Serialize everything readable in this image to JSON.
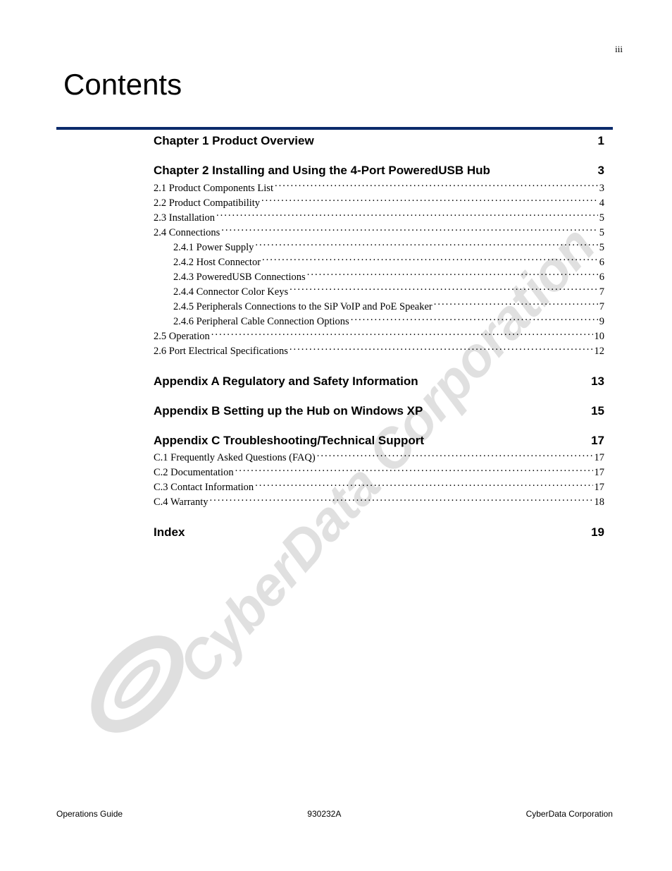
{
  "page": {
    "roman": "iii",
    "footer_left": "Operations Guide",
    "footer_center": "930232A",
    "footer_right": "CyberData Corporation",
    "watermark_text": "CyberData Corporation"
  },
  "title": "Contents",
  "colors": {
    "rule": "#0b2a6b",
    "text": "#000000",
    "watermark": "rgba(0,0,0,0.12)",
    "background": "#ffffff"
  },
  "typography": {
    "title_fontsize": 42,
    "heading_fontsize": 17,
    "line_fontsize": 14.5,
    "footer_fontsize": 12,
    "title_font": "Century Gothic",
    "body_font": "Georgia"
  },
  "toc": [
    {
      "heading": "Chapter 1 Product Overview",
      "page": "1",
      "entries": []
    },
    {
      "heading": "Chapter 2 Installing and Using the 4-Port PoweredUSB Hub",
      "page": "3",
      "entries": [
        {
          "label": "2.1 Product Components List",
          "page": "3",
          "indent": 0
        },
        {
          "label": "2.2 Product Compatibility",
          "page": "4",
          "indent": 0
        },
        {
          "label": "2.3 Installation",
          "page": "5",
          "indent": 0
        },
        {
          "label": "2.4 Connections",
          "page": "5",
          "indent": 0
        },
        {
          "label": "2.4.1 Power Supply",
          "page": "5",
          "indent": 1
        },
        {
          "label": "2.4.2 Host Connector",
          "page": "6",
          "indent": 1
        },
        {
          "label": "2.4.3 PoweredUSB Connections",
          "page": "6",
          "indent": 1
        },
        {
          "label": "2.4.4 Connector Color Keys",
          "page": "7",
          "indent": 1
        },
        {
          "label": "2.4.5 Peripherals Connections to the SiP VoIP and PoE Speaker",
          "page": "7",
          "indent": 1
        },
        {
          "label": "2.4.6 Peripheral Cable Connection Options",
          "page": "9",
          "indent": 1
        },
        {
          "label": "2.5 Operation",
          "page": "10",
          "indent": 0
        },
        {
          "label": "2.6 Port Electrical Specifications",
          "page": "12",
          "indent": 0
        }
      ]
    },
    {
      "heading": "Appendix A Regulatory and Safety Information",
      "page": "13",
      "entries": []
    },
    {
      "heading": "Appendix B Setting up the Hub on Windows XP",
      "page": "15",
      "entries": []
    },
    {
      "heading": "Appendix C Troubleshooting/Technical Support",
      "page": "17",
      "entries": [
        {
          "label": "C.1 Frequently Asked Questions (FAQ)",
          "page": "17",
          "indent": 0
        },
        {
          "label": "C.2 Documentation",
          "page": "17",
          "indent": 0
        },
        {
          "label": "C.3 Contact Information",
          "page": "17",
          "indent": 0
        },
        {
          "label": "C.4 Warranty",
          "page": "18",
          "indent": 0
        }
      ]
    },
    {
      "heading": "Index",
      "page": "19",
      "entries": []
    }
  ]
}
